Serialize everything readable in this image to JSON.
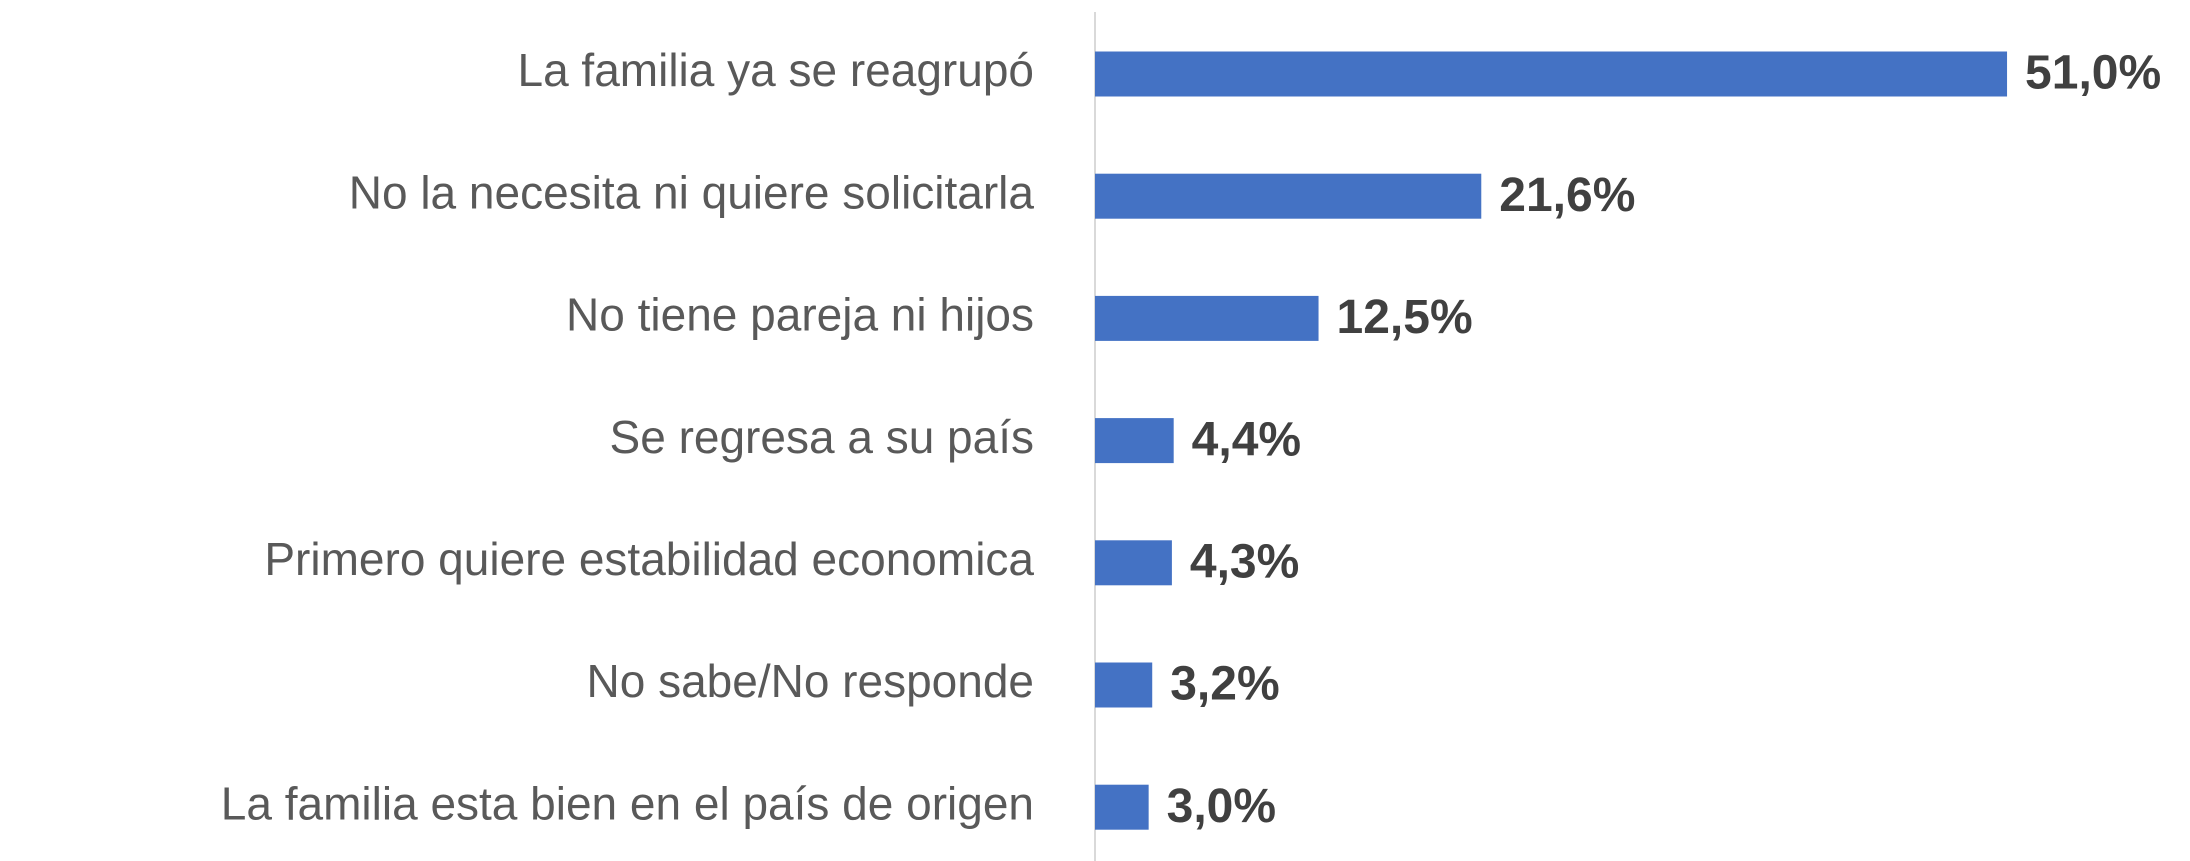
{
  "chart_data": {
    "type": "barh",
    "categories": [
      "La familia ya se reagrupó",
      "No la necesita ni quiere solicitarla",
      "No tiene pareja ni hijos",
      "Se regresa a su país",
      "Primero quiere estabilidad economica",
      "No sabe/No responde",
      "La familia esta bien en el país de origen"
    ],
    "values": [
      51.0,
      21.6,
      12.5,
      4.4,
      4.3,
      3.2,
      3.0
    ],
    "value_labels": [
      "51,0%",
      "21,6%",
      "12,5%",
      "4,4%",
      "4,3%",
      "3,2%",
      "3,0%"
    ],
    "color": "#4472c4",
    "xlim": [
      0,
      60
    ]
  }
}
